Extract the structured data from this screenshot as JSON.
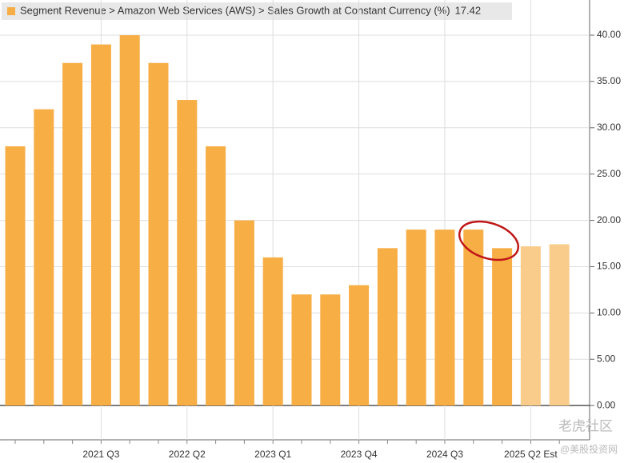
{
  "chart_data": {
    "type": "bar",
    "title": "Segment Revenue > Amazon Web Services (AWS) > Sales Growth at Constant Currency (%)",
    "title_value": 17.42,
    "categories": [
      null,
      null,
      null,
      "2021 Q3",
      null,
      null,
      "2022 Q2",
      null,
      null,
      "2023 Q1",
      null,
      null,
      "2023 Q4",
      null,
      null,
      "2024 Q3",
      null,
      null,
      "2025 Q2 Est",
      null
    ],
    "values": [
      28,
      32,
      37,
      39,
      40,
      37,
      33,
      28,
      20,
      16,
      12,
      12,
      13,
      17,
      19,
      19,
      19,
      17,
      17.2,
      17.42
    ],
    "colors": [
      "#f7ae45",
      "#f7ae45",
      "#f7ae45",
      "#f7ae45",
      "#f7ae45",
      "#f7ae45",
      "#f7ae45",
      "#f7ae45",
      "#f7ae45",
      "#f7ae45",
      "#f7ae45",
      "#f7ae45",
      "#f7ae45",
      "#f7ae45",
      "#f7ae45",
      "#f7ae45",
      "#f7ae45",
      "#f7ae45",
      "#f9cc8c",
      "#f9cc8c"
    ],
    "ylim": [
      -3.7,
      43.8
    ],
    "yticks": [
      {
        "value": 0,
        "label": "0.00"
      },
      {
        "value": 5,
        "label": "5.00"
      },
      {
        "value": 10,
        "label": "10.00"
      },
      {
        "value": 15,
        "label": "15.00"
      },
      {
        "value": 20,
        "label": "20.00"
      },
      {
        "value": 25,
        "label": "25.00"
      },
      {
        "value": 30,
        "label": "30.00"
      },
      {
        "value": 35,
        "label": "35.00"
      },
      {
        "value": 40,
        "label": "40.00"
      }
    ],
    "grid": true
  },
  "watermark": {
    "brand": "老虎社区",
    "source": "@美股投资网"
  }
}
